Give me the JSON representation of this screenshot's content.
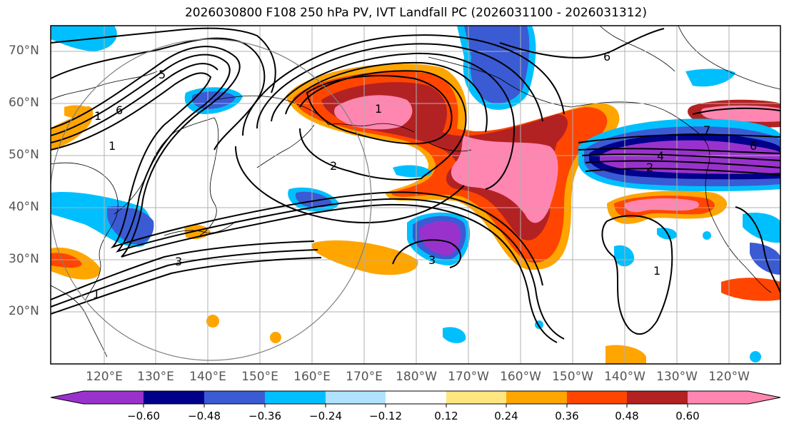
{
  "title": "2026030800 F108 250 hPa PV, IVT Landfall PC (2026031100 - 2026031312)",
  "map": {
    "lat_labels": [
      "70°N",
      "60°N",
      "50°N",
      "40°N",
      "30°N",
      "20°N"
    ],
    "lon_labels": [
      "120°E",
      "130°E",
      "140°E",
      "150°E",
      "160°E",
      "170°E",
      "180°W",
      "170°W",
      "160°W",
      "150°W",
      "140°W",
      "130°W",
      "120°W"
    ],
    "contour_labels": [
      "5",
      "6",
      "1",
      "1",
      "1",
      "2",
      "2",
      "3",
      "3",
      "1",
      "6",
      "4",
      "2",
      "7",
      "6",
      "1",
      "1"
    ]
  },
  "colorbar": {
    "colors": [
      "#9932cc",
      "#00008b",
      "#3a5bd3",
      "#00bfff",
      "#b0e2ff",
      "#ffffff",
      "#ffe680",
      "#ffa500",
      "#ff4500",
      "#b22222",
      "#ff86b0"
    ],
    "tick_labels": [
      "−0.60",
      "−0.48",
      "−0.36",
      "−0.24",
      "−0.12",
      "0.12",
      "0.24",
      "0.36",
      "0.48",
      "0.60"
    ]
  }
}
